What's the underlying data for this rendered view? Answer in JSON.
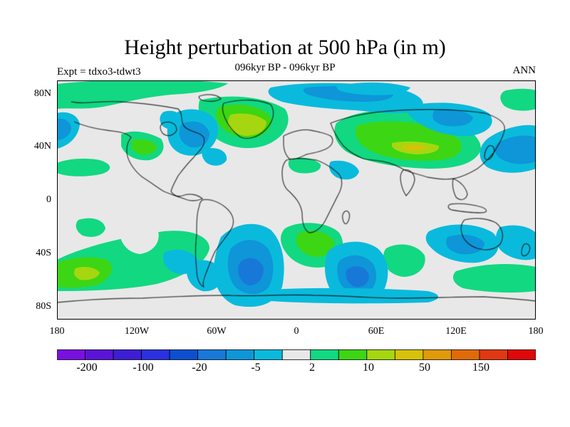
{
  "title": "Height perturbation at 500 hPa (in m)",
  "subtitle": "096kyr BP - 096kyr BP",
  "left_label": "Expt = tdxo3-tdwt3",
  "right_label": "ANN",
  "y_ticks": [
    "80N",
    "40N",
    "0",
    "40S",
    "80S"
  ],
  "x_ticks": [
    "180",
    "120W",
    "60W",
    "0",
    "60E",
    "120E",
    "180"
  ],
  "colors": {
    "background": "#e8e8e8",
    "palette": [
      "#7a10e0",
      "#5a14d8",
      "#3c1ed4",
      "#2b31e0",
      "#0c50d0",
      "#1878d8",
      "#0e96d8",
      "#0abadc",
      "#e8e8e8",
      "#12d882",
      "#3cd614",
      "#a6d610",
      "#d6c20a",
      "#e09a0a",
      "#e06a0a",
      "#e03812",
      "#e00808"
    ]
  },
  "colorbar": {
    "labels": [
      "-200",
      "-100",
      "-20",
      "-5",
      "2",
      "10",
      "50",
      "150"
    ]
  }
}
